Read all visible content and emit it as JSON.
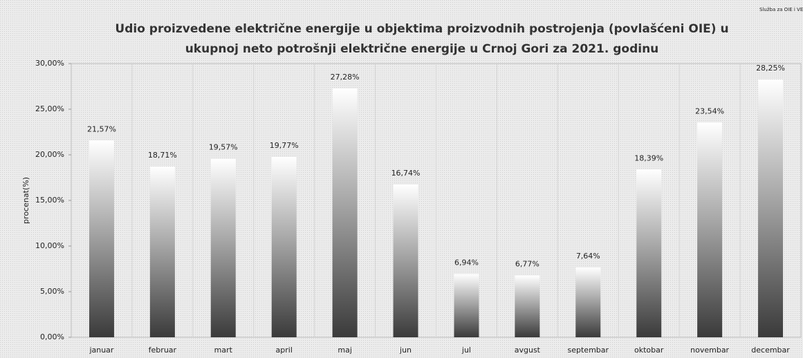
{
  "chart_data": {
    "type": "bar",
    "title": [
      "Udio proizvedene električne energije u objektima proizvodnih postrojenja (povlašćeni OIE) u",
      "ukupnoj neto potrošnji električne energije u Crnoj Gori za 2021. godinu"
    ],
    "source": "Služba za OIE i VEK",
    "y_label": "procenat(%)",
    "categories": [
      "januar",
      "februar",
      "mart",
      "april",
      "maj",
      "jun",
      "jul",
      "avgust",
      "septembar",
      "oktobar",
      "novembar",
      "decembar"
    ],
    "values": [
      21.57,
      18.71,
      19.57,
      19.77,
      27.28,
      16.74,
      6.94,
      6.77,
      7.64,
      18.39,
      23.54,
      28.25
    ],
    "value_labels": [
      "21,57%",
      "18,71%",
      "19,57%",
      "19,77%",
      "27,28%",
      "16,74%",
      "6,94%",
      "6,77%",
      "7,64%",
      "18,39%",
      "23,54%",
      "28,25%"
    ],
    "color": "#3a3a3a",
    "ylim": [
      0,
      30
    ],
    "yticks": [
      {
        "value": 0,
        "label": "0,00%"
      },
      {
        "value": 5,
        "label": "5,00%"
      },
      {
        "value": 10,
        "label": "10,00%"
      },
      {
        "value": 15,
        "label": "15,00%"
      },
      {
        "value": 20,
        "label": "20,00%"
      },
      {
        "value": 25,
        "label": "25,00%"
      },
      {
        "value": 30,
        "label": "30,00%"
      }
    ]
  }
}
